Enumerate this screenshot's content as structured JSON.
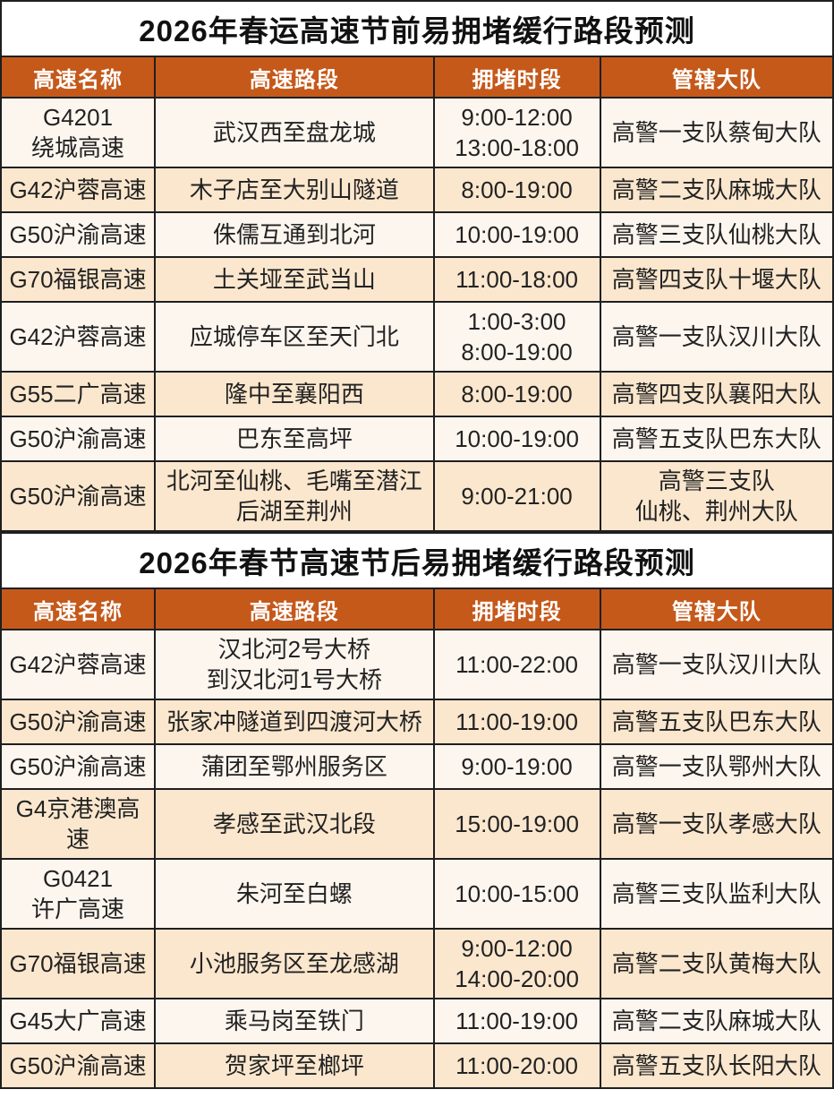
{
  "page": {
    "accent_color": "#C5591A",
    "row_odd_color": "#FDF6EF",
    "row_even_color": "#FBE7CE",
    "grid_color": "#1f1f1f"
  },
  "tables": [
    {
      "title": "2026年春运高速节前易拥堵缓行路段预测",
      "columns": [
        "高速名称",
        "高速路段",
        "拥堵时段",
        "管辖大队"
      ],
      "rows": [
        [
          "G4201\n绕城高速",
          "武汉西至盘龙城",
          "9:00-12:00\n13:00-18:00",
          "高警一支队蔡甸大队"
        ],
        [
          "G42沪蓉高速",
          "木子店至大别山隧道",
          "8:00-19:00",
          "高警二支队麻城大队"
        ],
        [
          "G50沪渝高速",
          "侏儒互通到北河",
          "10:00-19:00",
          "高警三支队仙桃大队"
        ],
        [
          "G70福银高速",
          "土关垭至武当山",
          "11:00-18:00",
          "高警四支队十堰大队"
        ],
        [
          "G42沪蓉高速",
          "应城停车区至天门北",
          "1:00-3:00\n8:00-19:00",
          "高警一支队汉川大队"
        ],
        [
          "G55二广高速",
          "隆中至襄阳西",
          "8:00-19:00",
          "高警四支队襄阳大队"
        ],
        [
          "G50沪渝高速",
          "巴东至高坪",
          "10:00-19:00",
          "高警五支队巴东大队"
        ],
        [
          "G50沪渝高速",
          "北河至仙桃、毛嘴至潜江\n后湖至荆州",
          "9:00-21:00",
          "高警三支队\n仙桃、荆州大队"
        ]
      ]
    },
    {
      "title": "2026年春节高速节后易拥堵缓行路段预测",
      "columns": [
        "高速名称",
        "高速路段",
        "拥堵时段",
        "管辖大队"
      ],
      "rows": [
        [
          "G42沪蓉高速",
          "汉北河2号大桥\n到汉北河1号大桥",
          "11:00-22:00",
          "高警一支队汉川大队"
        ],
        [
          "G50沪渝高速",
          "张家冲隧道到四渡河大桥",
          "11:00-19:00",
          "高警五支队巴东大队"
        ],
        [
          "G50沪渝高速",
          "蒲团至鄂州服务区",
          "9:00-19:00",
          "高警一支队鄂州大队"
        ],
        [
          "G4京港澳高速",
          "孝感至武汉北段",
          "15:00-19:00",
          "高警一支队孝感大队"
        ],
        [
          "G0421\n许广高速",
          "朱河至白螺",
          "10:00-15:00",
          "高警三支队监利大队"
        ],
        [
          "G70福银高速",
          "小池服务区至龙感湖",
          "9:00-12:00\n14:00-20:00",
          "高警二支队黄梅大队"
        ],
        [
          "G45大广高速",
          "乘马岗至铁门",
          "11:00-19:00",
          "高警二支队麻城大队"
        ],
        [
          "G50沪渝高速",
          "贺家坪至榔坪",
          "11:00-20:00",
          "高警五支队长阳大队"
        ]
      ]
    }
  ]
}
